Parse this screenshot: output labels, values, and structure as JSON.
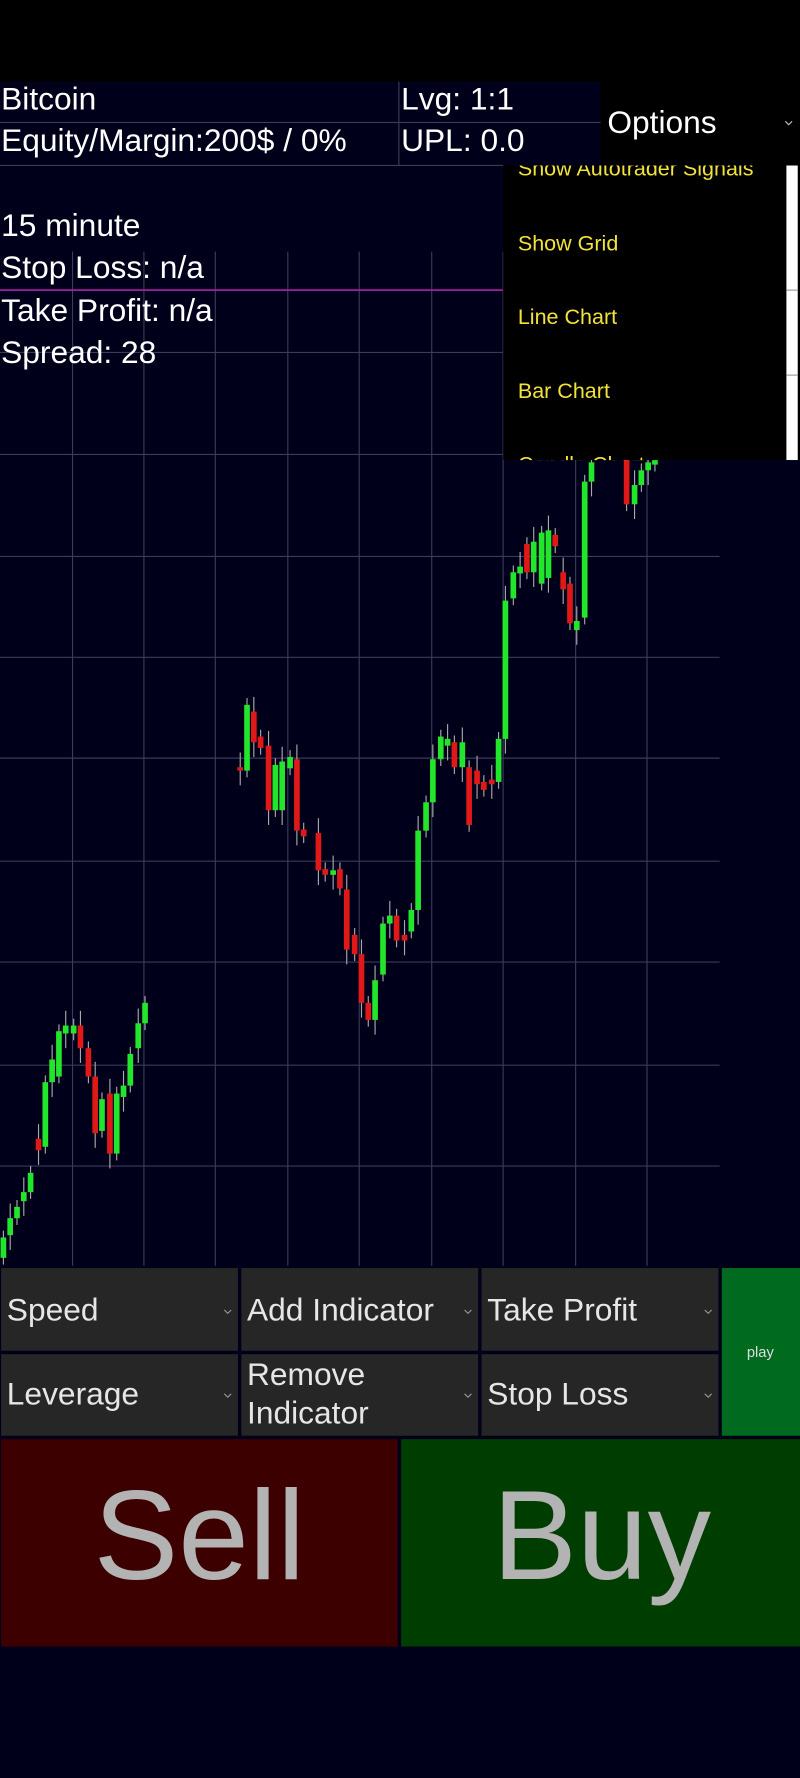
{
  "header": {
    "instrument": "Bitcoin",
    "equity": "Equity/Margin:200$ / 0%",
    "leverage": "Lvg: 1:1",
    "upl": "UPL: 0.0",
    "options": "Options"
  },
  "info": [
    "15 minute",
    "Stop Loss: n/a",
    "Take Profit: n/a",
    "Spread: 28"
  ],
  "menu": [
    "Show Autotrader Signals",
    "Show Grid",
    "Line Chart",
    "Bar Chart",
    "Candle Chart"
  ],
  "controls": {
    "speed": "Speed",
    "add_indicator": "Add Indicator",
    "take_profit": "Take Profit",
    "leverage": "Leverage",
    "remove_indicator": [
      "Remove",
      "Indicator"
    ],
    "stop_loss": "Stop Loss",
    "play": "play"
  },
  "sell": "Sell",
  "buy": "Buy"
}
